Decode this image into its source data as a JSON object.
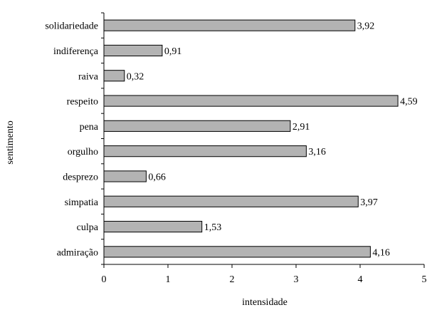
{
  "chart_data": {
    "type": "bar",
    "orientation": "horizontal",
    "xlabel": "intensidade",
    "ylabel": "sentimento",
    "xlim": [
      0,
      5
    ],
    "xticks": [
      0,
      1,
      2,
      3,
      4,
      5
    ],
    "grid": false,
    "legend": "none",
    "bar_color": "#b3b3b3",
    "bar_outline": "#000000",
    "categories": [
      "solidariedade",
      "indiferença",
      "raiva",
      "respeito",
      "pena",
      "orgulho",
      "desprezo",
      "simpatia",
      "culpa",
      "admiração"
    ],
    "values": [
      3.92,
      0.91,
      0.32,
      4.59,
      2.91,
      3.16,
      0.66,
      3.97,
      1.53,
      4.16
    ],
    "value_labels": [
      "3,92",
      "0,91",
      "0,32",
      "4,59",
      "2,91",
      "3,16",
      "0,66",
      "3,97",
      "1,53",
      "4,16"
    ]
  }
}
